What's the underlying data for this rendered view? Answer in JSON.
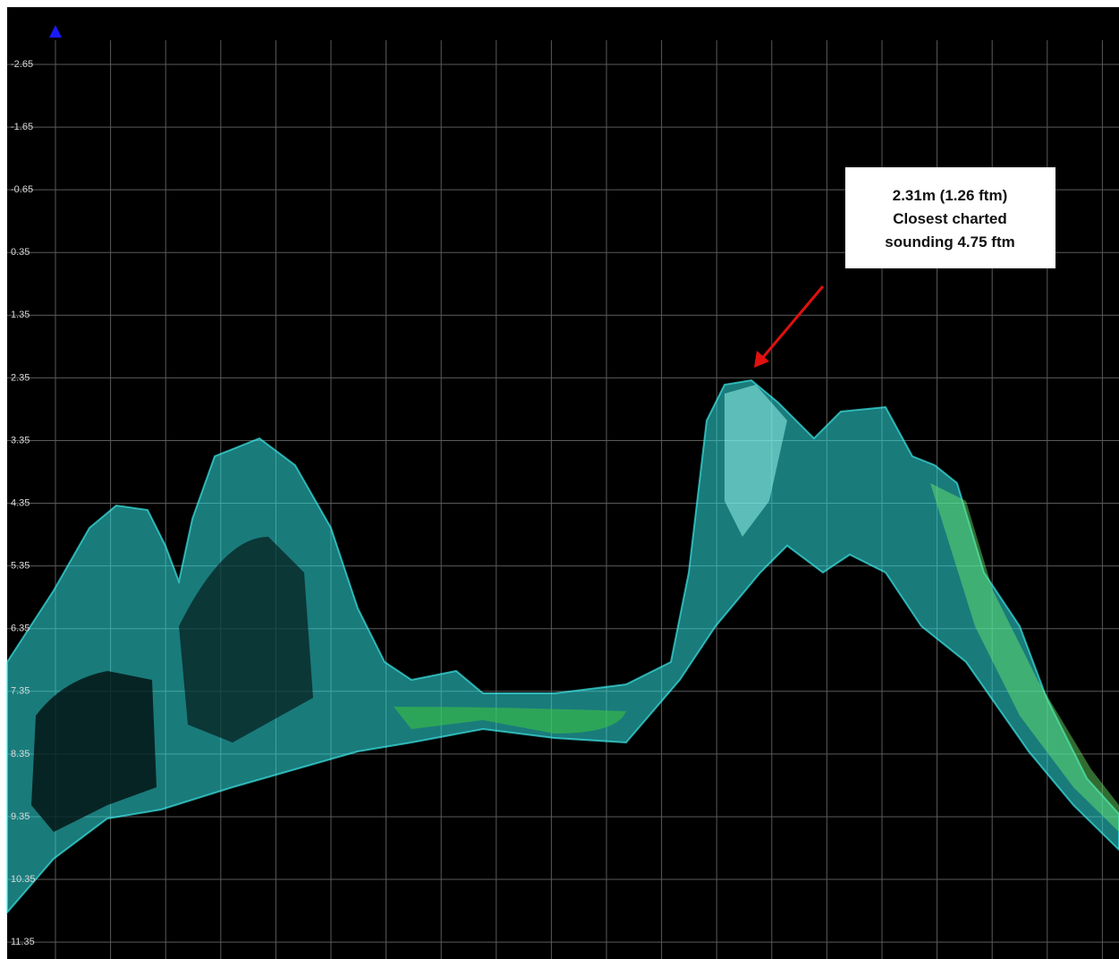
{
  "depth_axis": {
    "labels": [
      "-2.65",
      "-1.65",
      "-0.65",
      "0.35",
      "1.35",
      "2.35",
      "3.35",
      "4.35",
      "5.35",
      "6.35",
      "7.35",
      "8.35",
      "9.35",
      "10.35",
      "11.35"
    ]
  },
  "annotation": {
    "lines": [
      "2.31m (1.26 ftm)",
      "Closest charted",
      "sounding 4.75 ftm"
    ]
  }
}
